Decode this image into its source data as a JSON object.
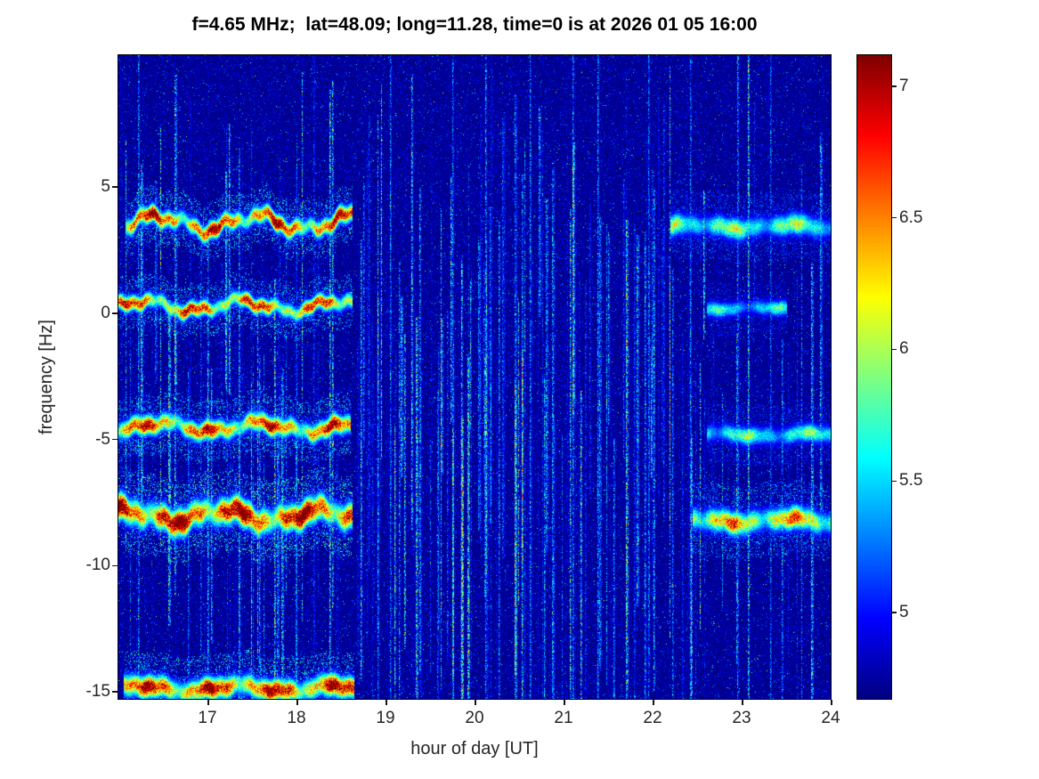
{
  "chart_data": {
    "type": "heatmap",
    "title": "f=4.65 MHz;  lat=48.09; long=11.28, time=0 is at 2026 01 05 16:00",
    "xlabel": "hour of day [UT]",
    "ylabel": "frequency [Hz]",
    "xlim": [
      16,
      24
    ],
    "ylim": [
      -15.28,
      10.22
    ],
    "xticks": [
      17,
      18,
      19,
      20,
      21,
      22,
      23,
      24
    ],
    "yticks": [
      5,
      0,
      -5,
      -10,
      -15
    ],
    "grid": false,
    "legend": false,
    "colorbar": {
      "colormap": "jet",
      "clim": [
        4.672,
        7.118
      ],
      "ticks": [
        7,
        6.5,
        6,
        5.5,
        5
      ],
      "position": "right"
    },
    "noise": {
      "base": 4.62,
      "exp_mean": 0.12,
      "speckle_prob": 0.004
    },
    "streaks": {
      "count": 340,
      "strong": [
        {
          "t": 16.22,
          "s": 0.75
        },
        {
          "t": 19.05,
          "s": 0.7
        },
        {
          "t": 19.75,
          "s": 0.65
        },
        {
          "t": 20.12,
          "s": 0.8
        },
        {
          "t": 20.62,
          "s": 0.7
        },
        {
          "t": 21.1,
          "s": 0.65
        },
        {
          "t": 21.38,
          "s": 0.75
        },
        {
          "t": 21.95,
          "s": 0.6
        },
        {
          "t": 22.42,
          "s": 0.6
        },
        {
          "t": 22.95,
          "s": 0.7
        },
        {
          "t": 23.07,
          "s": 1.05
        },
        {
          "t": 23.32,
          "s": 0.6
        }
      ]
    },
    "traces": [
      {
        "f": 3.6,
        "t0": 16.08,
        "t1": 18.62,
        "peak": 7.05,
        "sigma": 0.22,
        "wobble": 0.5
      },
      {
        "f": 0.3,
        "t0": 16.0,
        "t1": 18.62,
        "peak": 6.85,
        "sigma": 0.2,
        "wobble": 0.38
      },
      {
        "f": -4.5,
        "t0": 16.0,
        "t1": 18.6,
        "peak": 6.95,
        "sigma": 0.24,
        "wobble": 0.32
      },
      {
        "f": -8.0,
        "t0": 16.0,
        "t1": 18.62,
        "peak": 7.3,
        "sigma": 0.34,
        "wobble": 0.4
      },
      {
        "f": -14.85,
        "t0": 16.05,
        "t1": 18.65,
        "peak": 7.1,
        "sigma": 0.28,
        "wobble": 0.22
      },
      {
        "f": 3.45,
        "t0": 22.2,
        "t1": 24.0,
        "peak": 6.0,
        "sigma": 0.28,
        "wobble": 0.15
      },
      {
        "f": -8.2,
        "t0": 22.45,
        "t1": 24.0,
        "peak": 6.55,
        "sigma": 0.3,
        "wobble": 0.18
      },
      {
        "f": -4.8,
        "t0": 22.6,
        "t1": 24.0,
        "peak": 5.85,
        "sigma": 0.24,
        "wobble": 0.12
      },
      {
        "f": 0.2,
        "t0": 22.6,
        "t1": 23.5,
        "peak": 5.7,
        "sigma": 0.2,
        "wobble": 0.1
      }
    ]
  }
}
